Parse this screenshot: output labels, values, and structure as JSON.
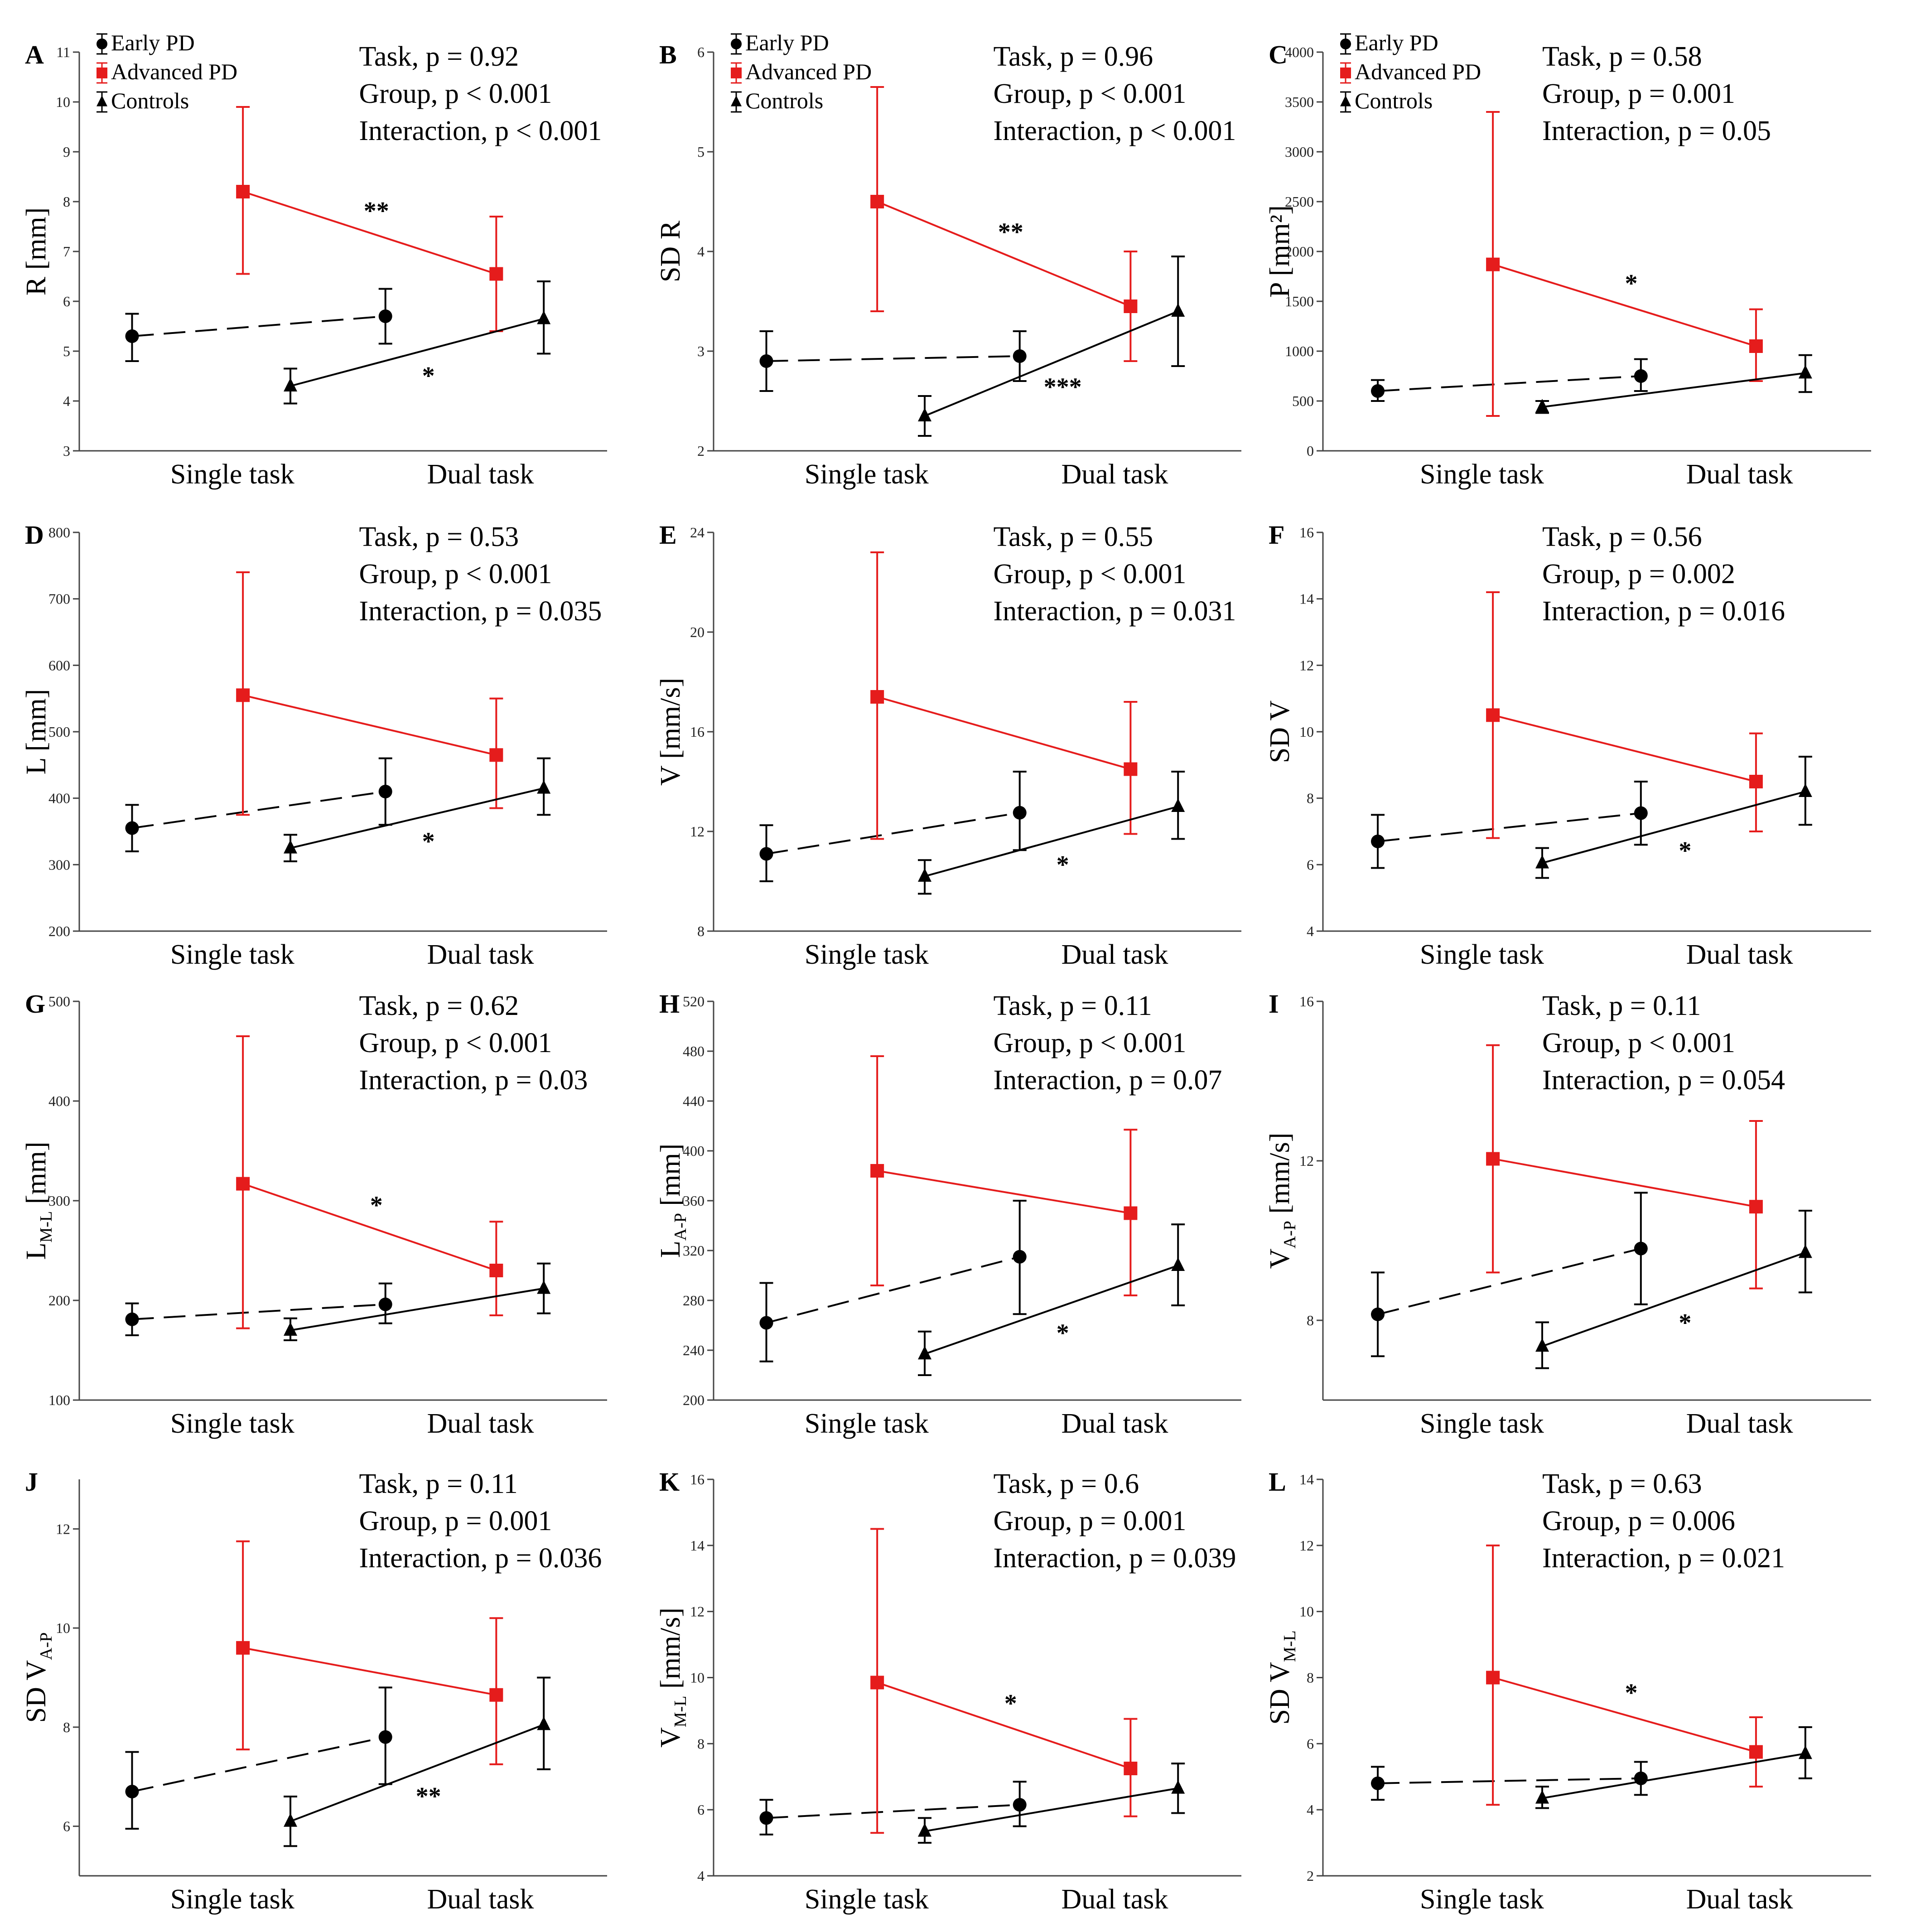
{
  "figure": {
    "colors": {
      "early": "#000000",
      "advanced": "#e51c1c",
      "controls": "#000000",
      "axis": "#444444"
    },
    "legend": [
      "Early PD",
      "Advanced PD",
      "Controls"
    ],
    "xcategories": [
      "Single task",
      "Dual task"
    ]
  },
  "chart_data": [
    {
      "id": "A",
      "type": "line",
      "ylabel": "R [mm]",
      "ylim": [
        3,
        11
      ],
      "yticks": [
        3,
        4,
        5,
        6,
        7,
        8,
        9,
        10,
        11
      ],
      "legend": true,
      "stats": [
        "Task, p = 0.92",
        "Group, p < 0.001",
        "Interaction, p < 0.001"
      ],
      "series": [
        {
          "name": "Early PD",
          "mean": [
            5.3,
            5.7
          ],
          "err": [
            [
              4.8,
              5.75
            ],
            [
              5.15,
              6.25
            ]
          ]
        },
        {
          "name": "Advanced PD",
          "mean": [
            8.2,
            6.55
          ],
          "err": [
            [
              6.55,
              9.9
            ],
            [
              5.4,
              7.7
            ]
          ]
        },
        {
          "name": "Controls",
          "mean": [
            4.3,
            5.65
          ],
          "err": [
            [
              3.95,
              4.65
            ],
            [
              4.95,
              6.4
            ]
          ]
        }
      ],
      "sig": [
        {
          "series": "Advanced PD",
          "label": "**"
        },
        {
          "series": "Controls",
          "label": "*"
        }
      ]
    },
    {
      "id": "B",
      "type": "line",
      "ylabel": "SD R",
      "ylim": [
        2,
        6
      ],
      "yticks": [
        2,
        3,
        4,
        5,
        6
      ],
      "legend": true,
      "stats": [
        "Task, p = 0.96",
        "Group, p < 0.001",
        "Interaction, p < 0.001"
      ],
      "series": [
        {
          "name": "Early PD",
          "mean": [
            2.9,
            2.95
          ],
          "err": [
            [
              2.6,
              3.2
            ],
            [
              2.7,
              3.2
            ]
          ]
        },
        {
          "name": "Advanced PD",
          "mean": [
            4.5,
            3.45
          ],
          "err": [
            [
              3.4,
              5.65
            ],
            [
              2.9,
              4.0
            ]
          ]
        },
        {
          "name": "Controls",
          "mean": [
            2.35,
            3.4
          ],
          "err": [
            [
              2.15,
              2.55
            ],
            [
              2.85,
              3.95
            ]
          ]
        }
      ],
      "sig": [
        {
          "series": "Advanced PD",
          "label": "**"
        },
        {
          "series": "Controls",
          "label": "***"
        }
      ]
    },
    {
      "id": "C",
      "type": "line",
      "ylabel": "P [mm²]",
      "ylim": [
        0,
        4000
      ],
      "yticks": [
        0,
        500,
        1000,
        1500,
        2000,
        2500,
        3000,
        3500,
        4000
      ],
      "legend": true,
      "stats": [
        "Task, p = 0.58",
        "Group, p = 0.001",
        "Interaction, p = 0.05"
      ],
      "series": [
        {
          "name": "Early PD",
          "mean": [
            600,
            750
          ],
          "err": [
            [
              500,
              710
            ],
            [
              600,
              920
            ]
          ]
        },
        {
          "name": "Advanced PD",
          "mean": [
            1870,
            1050
          ],
          "err": [
            [
              350,
              3400
            ],
            [
              700,
              1420
            ]
          ]
        },
        {
          "name": "Controls",
          "mean": [
            440,
            780
          ],
          "err": [
            [
              380,
              500
            ],
            [
              590,
              960
            ]
          ]
        }
      ],
      "sig": [
        {
          "series": "Advanced PD",
          "label": "*"
        }
      ]
    },
    {
      "id": "D",
      "type": "line",
      "ylabel": "L [mm]",
      "ylim": [
        200,
        800
      ],
      "yticks": [
        200,
        300,
        400,
        500,
        600,
        700,
        800
      ],
      "legend": false,
      "stats": [
        "Task, p = 0.53",
        "Group, p < 0.001",
        "Interaction, p = 0.035"
      ],
      "series": [
        {
          "name": "Early PD",
          "mean": [
            355,
            410
          ],
          "err": [
            [
              320,
              390
            ],
            [
              360,
              460
            ]
          ]
        },
        {
          "name": "Advanced PD",
          "mean": [
            555,
            465
          ],
          "err": [
            [
              375,
              740
            ],
            [
              385,
              550
            ]
          ]
        },
        {
          "name": "Controls",
          "mean": [
            325,
            415
          ],
          "err": [
            [
              305,
              345
            ],
            [
              375,
              460
            ]
          ]
        }
      ],
      "sig": [
        {
          "series": "Controls",
          "label": "*"
        }
      ]
    },
    {
      "id": "E",
      "type": "line",
      "ylabel": "V [mm/s]",
      "ylim": [
        8,
        24
      ],
      "yticks": [
        8,
        12,
        16,
        20,
        24
      ],
      "legend": false,
      "stats": [
        "Task, p = 0.55",
        "Group, p < 0.001",
        "Interaction, p = 0.031"
      ],
      "series": [
        {
          "name": "Early PD",
          "mean": [
            11.1,
            12.75
          ],
          "err": [
            [
              10.0,
              12.25
            ],
            [
              11.25,
              14.4
            ]
          ]
        },
        {
          "name": "Advanced PD",
          "mean": [
            17.4,
            14.5
          ],
          "err": [
            [
              11.7,
              23.2
            ],
            [
              11.9,
              17.2
            ]
          ]
        },
        {
          "name": "Controls",
          "mean": [
            10.2,
            13.0
          ],
          "err": [
            [
              9.5,
              10.85
            ],
            [
              11.7,
              14.4
            ]
          ]
        }
      ],
      "sig": [
        {
          "series": "Controls",
          "label": "*"
        }
      ]
    },
    {
      "id": "F",
      "type": "line",
      "ylabel": "SD V",
      "ylim": [
        4,
        16
      ],
      "yticks": [
        4,
        6,
        8,
        10,
        12,
        14,
        16
      ],
      "legend": false,
      "stats": [
        "Task, p = 0.56",
        "Group, p = 0.002",
        "Interaction, p = 0.016"
      ],
      "series": [
        {
          "name": "Early PD",
          "mean": [
            6.7,
            7.55
          ],
          "err": [
            [
              5.9,
              7.5
            ],
            [
              6.6,
              8.5
            ]
          ]
        },
        {
          "name": "Advanced PD",
          "mean": [
            10.5,
            8.5
          ],
          "err": [
            [
              6.8,
              14.2
            ],
            [
              7.0,
              9.95
            ]
          ]
        },
        {
          "name": "Controls",
          "mean": [
            6.05,
            8.2
          ],
          "err": [
            [
              5.6,
              6.5
            ],
            [
              7.2,
              9.25
            ]
          ]
        }
      ],
      "sig": [
        {
          "series": "Controls",
          "label": "*"
        }
      ]
    },
    {
      "id": "G",
      "type": "line",
      "ylabel": "L",
      "ylabel_sub": "M-L",
      "ylabel_tail": " [mm]",
      "ylim": [
        100,
        500
      ],
      "yticks": [
        100,
        200,
        300,
        400,
        500
      ],
      "legend": false,
      "stats": [
        "Task, p = 0.62",
        "Group, p < 0.001",
        "Interaction, p = 0.03"
      ],
      "series": [
        {
          "name": "Early PD",
          "mean": [
            181,
            196
          ],
          "err": [
            [
              165,
              197
            ],
            [
              177,
              217
            ]
          ]
        },
        {
          "name": "Advanced PD",
          "mean": [
            317,
            230
          ],
          "err": [
            [
              172,
              465
            ],
            [
              185,
              279
            ]
          ]
        },
        {
          "name": "Controls",
          "mean": [
            170,
            212
          ],
          "err": [
            [
              160,
              182
            ],
            [
              187,
              237
            ]
          ]
        }
      ],
      "sig": [
        {
          "series": "Advanced PD",
          "label": "*"
        }
      ]
    },
    {
      "id": "H",
      "type": "line",
      "ylabel": "L",
      "ylabel_sub": "A-P",
      "ylabel_tail": " [mm]",
      "ylim": [
        200,
        520
      ],
      "yticks": [
        200,
        240,
        280,
        320,
        360,
        400,
        440,
        480,
        520
      ],
      "legend": false,
      "stats": [
        "Task, p = 0.11",
        "Group, p < 0.001",
        "Interaction, p = 0.07"
      ],
      "series": [
        {
          "name": "Early PD",
          "mean": [
            262,
            315
          ],
          "err": [
            [
              231,
              294
            ],
            [
              269,
              360
            ]
          ]
        },
        {
          "name": "Advanced PD",
          "mean": [
            384,
            350
          ],
          "err": [
            [
              292,
              476
            ],
            [
              284,
              417
            ]
          ]
        },
        {
          "name": "Controls",
          "mean": [
            237,
            308
          ],
          "err": [
            [
              220,
              255
            ],
            [
              276,
              341
            ]
          ]
        }
      ],
      "sig": [
        {
          "series": "Controls",
          "label": "*"
        }
      ]
    },
    {
      "id": "I",
      "type": "line",
      "ylabel": "V",
      "ylabel_sub": "A-P",
      "ylabel_tail": " [mm/s]",
      "ylim": [
        6,
        16
      ],
      "yticks": [
        8,
        12,
        16
      ],
      "legend": false,
      "stats": [
        "Task, p = 0.11",
        "Group, p < 0.001",
        "Interaction, p = 0.054"
      ],
      "series": [
        {
          "name": "Early PD",
          "mean": [
            8.15,
            9.8
          ],
          "err": [
            [
              7.1,
              9.2
            ],
            [
              8.4,
              11.2
            ]
          ]
        },
        {
          "name": "Advanced PD",
          "mean": [
            12.05,
            10.85
          ],
          "err": [
            [
              9.2,
              14.9
            ],
            [
              8.8,
              13.0
            ]
          ]
        },
        {
          "name": "Controls",
          "mean": [
            7.35,
            9.7
          ],
          "err": [
            [
              6.8,
              7.95
            ],
            [
              8.7,
              10.75
            ]
          ]
        }
      ],
      "sig": [
        {
          "series": "Controls",
          "label": "*"
        }
      ]
    },
    {
      "id": "J",
      "type": "line",
      "ylabel": "SD V",
      "ylabel_sub": "A-P",
      "ylabel_tail": "",
      "ylim": [
        5,
        13
      ],
      "yticks": [
        6,
        8,
        10,
        12
      ],
      "legend": false,
      "stats": [
        "Task, p = 0.11",
        "Group, p = 0.001",
        "Interaction, p = 0.036"
      ],
      "series": [
        {
          "name": "Early PD",
          "mean": [
            6.7,
            7.8
          ],
          "err": [
            [
              5.95,
              7.5
            ],
            [
              6.85,
              8.8
            ]
          ]
        },
        {
          "name": "Advanced PD",
          "mean": [
            9.6,
            8.65
          ],
          "err": [
            [
              7.55,
              11.75
            ],
            [
              7.25,
              10.2
            ]
          ]
        },
        {
          "name": "Controls",
          "mean": [
            6.1,
            8.05
          ],
          "err": [
            [
              5.6,
              6.6
            ],
            [
              7.15,
              9.0
            ]
          ]
        }
      ],
      "sig": [
        {
          "series": "Controls",
          "label": "**"
        }
      ]
    },
    {
      "id": "K",
      "type": "line",
      "ylabel": "V",
      "ylabel_sub": "M-L",
      "ylabel_tail": " [mm/s]",
      "ylim": [
        4,
        16
      ],
      "yticks": [
        4,
        6,
        8,
        10,
        12,
        14,
        16
      ],
      "legend": false,
      "stats": [
        "Task, p = 0.6",
        "Group, p = 0.001",
        "Interaction, p = 0.039"
      ],
      "series": [
        {
          "name": "Early PD",
          "mean": [
            5.75,
            6.15
          ],
          "err": [
            [
              5.25,
              6.3
            ],
            [
              5.5,
              6.85
            ]
          ]
        },
        {
          "name": "Advanced PD",
          "mean": [
            9.85,
            7.25
          ],
          "err": [
            [
              5.3,
              14.5
            ],
            [
              5.8,
              8.75
            ]
          ]
        },
        {
          "name": "Controls",
          "mean": [
            5.35,
            6.65
          ],
          "err": [
            [
              5.0,
              5.75
            ],
            [
              5.9,
              7.4
            ]
          ]
        }
      ],
      "sig": [
        {
          "series": "Advanced PD",
          "label": "*"
        }
      ]
    },
    {
      "id": "L",
      "type": "line",
      "ylabel": "SD V",
      "ylabel_sub": "M-L",
      "ylabel_tail": "",
      "ylim": [
        2,
        14
      ],
      "yticks": [
        2,
        4,
        6,
        8,
        10,
        12,
        14
      ],
      "legend": false,
      "stats": [
        "Task, p = 0.63",
        "Group, p = 0.006",
        "Interaction, p = 0.021"
      ],
      "series": [
        {
          "name": "Early PD",
          "mean": [
            4.8,
            4.95
          ],
          "err": [
            [
              4.3,
              5.3
            ],
            [
              4.45,
              5.45
            ]
          ]
        },
        {
          "name": "Advanced PD",
          "mean": [
            8.0,
            5.75
          ],
          "err": [
            [
              4.15,
              12.0
            ],
            [
              4.7,
              6.8
            ]
          ]
        },
        {
          "name": "Controls",
          "mean": [
            4.35,
            5.7
          ],
          "err": [
            [
              4.05,
              4.7
            ],
            [
              4.95,
              6.5
            ]
          ]
        }
      ],
      "sig": [
        {
          "series": "Advanced PD",
          "label": "*"
        }
      ]
    }
  ]
}
